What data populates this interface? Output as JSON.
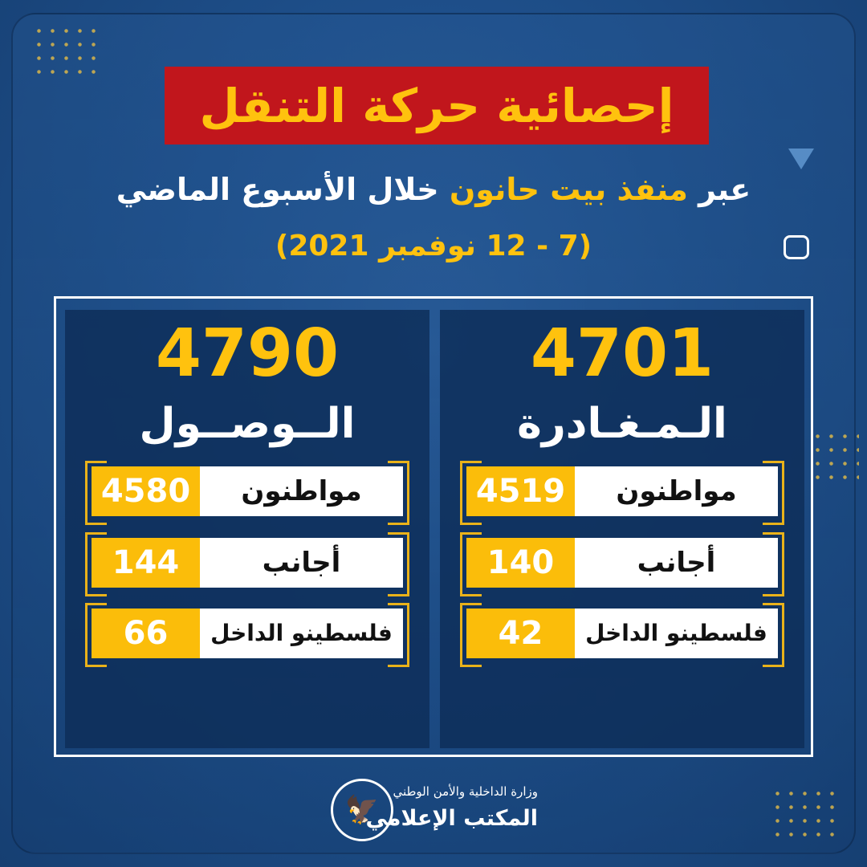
{
  "title": "إحصائية حركة التنقل",
  "subtitle": {
    "prefix": "عبر",
    "highlight": "منفذ بيت حانون",
    "suffix": "خلال الأسبوع الماضي"
  },
  "date_range": "(7 - 12 نوفمبر 2021)",
  "departure": {
    "total": "4701",
    "label": "الـمـغـادرة",
    "rows": [
      {
        "label": "مواطنون",
        "value": "4519"
      },
      {
        "label": "أجانب",
        "value": "140"
      },
      {
        "label": "فلسطينو الداخل",
        "value": "42"
      }
    ]
  },
  "arrival": {
    "total": "4790",
    "label": "الــوصــول",
    "rows": [
      {
        "label": "مواطنون",
        "value": "4580"
      },
      {
        "label": "أجانب",
        "value": "144"
      },
      {
        "label": "فلسطينو الداخل",
        "value": "66"
      }
    ]
  },
  "footer": {
    "ministry": "وزارة الداخلية والأمن الوطني",
    "office": "المكتب الإعلامي",
    "logo_icon": "eagle-emblem-icon"
  },
  "colors": {
    "accent": "#ffc20e",
    "title_bg": "#c1161c",
    "background": "#1e4f8a"
  }
}
